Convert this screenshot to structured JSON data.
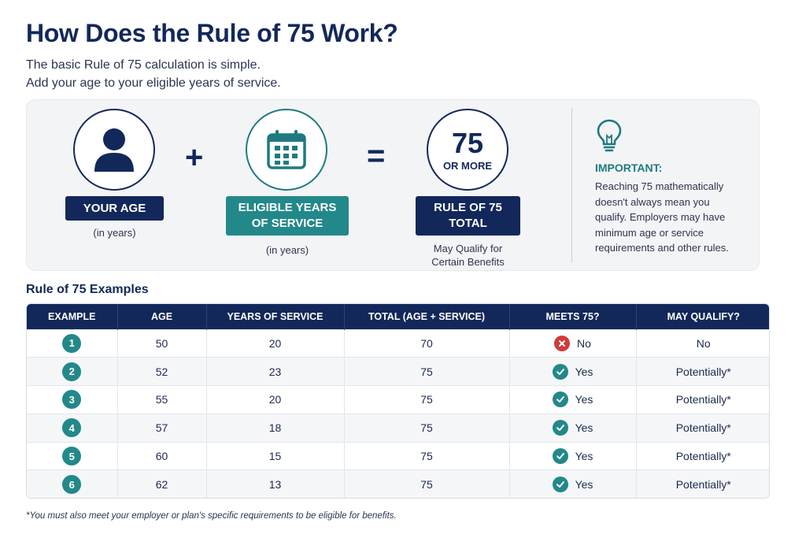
{
  "title": "How Does the Rule of 75 Work?",
  "intro": {
    "line1": "The basic Rule of 75 calculation is simple.",
    "line2": "Add your age to your eligible years of service."
  },
  "formula": {
    "age": {
      "label": "YOUR AGE",
      "sub": "(in years)",
      "icon": "person-icon"
    },
    "plus": "+",
    "service": {
      "label_line1": "ELIGIBLE YEARS",
      "label_line2": "OF SERVICE",
      "sub": "(in years)",
      "icon": "calendar-icon"
    },
    "equals": "=",
    "result": {
      "number": "75",
      "qualifier": "OR MORE",
      "label_line1": "RULE OF 75",
      "label_line2": "TOTAL",
      "sub_line1": "May Qualify for",
      "sub_line2": "Certain Benefits"
    }
  },
  "important": {
    "icon": "lightbulb-icon",
    "title": "IMPORTANT:",
    "lines": [
      "Reaching 75 mathematically",
      "doesn't always mean you",
      "qualify. Employers may have",
      "minimum age or service",
      "requirements and other rules."
    ]
  },
  "examples": {
    "title": "Rule of 75 Examples",
    "headers": [
      "EXAMPLE",
      "AGE",
      "YEARS OF SERVICE",
      "TOTAL (AGE + SERVICE)",
      "MEETS 75?",
      "MAY QUALIFY?"
    ],
    "rows": [
      {
        "example": "1",
        "age": "50",
        "service": "20",
        "total": "70",
        "meets": "No",
        "meets_ok": false,
        "qualify": "No"
      },
      {
        "example": "2",
        "age": "52",
        "service": "23",
        "total": "75",
        "meets": "Yes",
        "meets_ok": true,
        "qualify": "Potentially*"
      },
      {
        "example": "3",
        "age": "55",
        "service": "20",
        "total": "75",
        "meets": "Yes",
        "meets_ok": true,
        "qualify": "Potentially*"
      },
      {
        "example": "4",
        "age": "57",
        "service": "18",
        "total": "75",
        "meets": "Yes",
        "meets_ok": true,
        "qualify": "Potentially*"
      },
      {
        "example": "5",
        "age": "60",
        "service": "15",
        "total": "75",
        "meets": "Yes",
        "meets_ok": true,
        "qualify": "Potentially*"
      },
      {
        "example": "6",
        "age": "62",
        "service": "13",
        "total": "75",
        "meets": "Yes",
        "meets_ok": true,
        "qualify": "Potentially*"
      }
    ]
  },
  "footnote": "*You must also meet your employer or plan's specific requirements to be eligible for benefits.",
  "colors": {
    "navy": "#13285a",
    "teal": "#23888a",
    "red": "#d03a3a"
  }
}
